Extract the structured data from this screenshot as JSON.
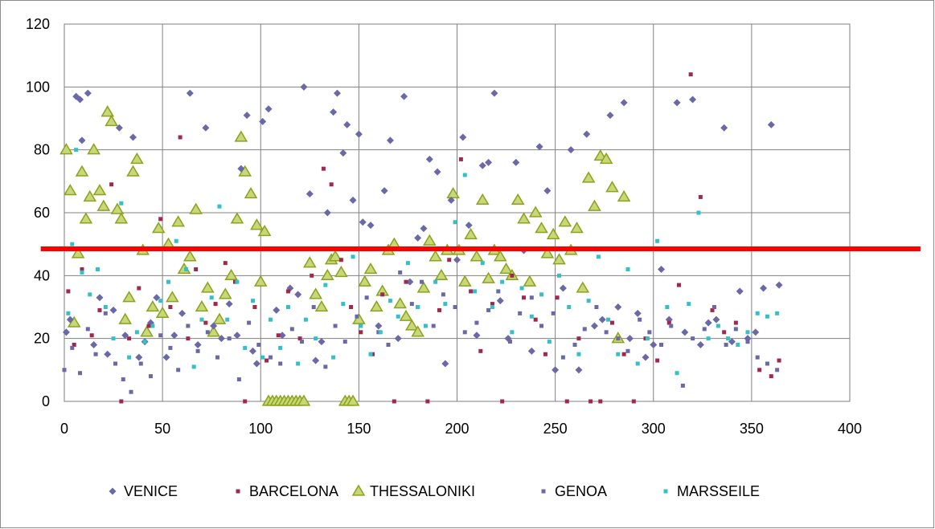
{
  "chart_data": {
    "type": "scatter",
    "title": "",
    "xlabel": "",
    "ylabel": "",
    "xlim": [
      0,
      400
    ],
    "ylim": [
      0,
      120
    ],
    "x_ticks": [
      0,
      50,
      100,
      150,
      200,
      250,
      300,
      350,
      400
    ],
    "y_ticks": [
      0,
      20,
      40,
      60,
      80,
      100,
      120
    ],
    "x_tick_labels": [
      "0",
      "50",
      "100",
      "150",
      "200",
      "250",
      "300",
      "350",
      "400"
    ],
    "y_tick_labels": [
      "0",
      "20",
      "40",
      "60",
      "80",
      "100",
      "120"
    ],
    "grid": true,
    "legend_position": "bottom",
    "threshold_line": {
      "y": 48.5,
      "x_range": [
        -12,
        436
      ],
      "color": "#ff0000"
    },
    "series": [
      {
        "name": "VENICE",
        "marker": "diamond",
        "color": "#6b68a8",
        "x": [
          1,
          3,
          6,
          8,
          9,
          12,
          15,
          18,
          22,
          25,
          28,
          31,
          35,
          38,
          41,
          44,
          47,
          52,
          56,
          60,
          64,
          68,
          72,
          76,
          80,
          84,
          88,
          90,
          93,
          96,
          98,
          101,
          104,
          108,
          111,
          115,
          119,
          122,
          125,
          128,
          131,
          134,
          137,
          139,
          142,
          144,
          147,
          150,
          152,
          156,
          160,
          163,
          166,
          170,
          173,
          176,
          180,
          183,
          186,
          190,
          194,
          197,
          200,
          203,
          206,
          210,
          213,
          216,
          219,
          222,
          226,
          230,
          234,
          238,
          242,
          246,
          250,
          254,
          258,
          262,
          266,
          270,
          274,
          278,
          282,
          285,
          288,
          292,
          296,
          300,
          304,
          308,
          312,
          316,
          320,
          324,
          328,
          332,
          336,
          340,
          344,
          348,
          352,
          356,
          360,
          364
        ],
        "y": [
          22,
          26,
          97,
          96,
          83,
          98,
          18,
          33,
          15,
          29,
          87,
          21,
          84,
          14,
          19,
          25,
          33,
          14,
          21,
          28,
          98,
          18,
          87,
          24,
          20,
          31,
          21,
          74,
          91,
          16,
          12,
          89,
          93,
          29,
          21,
          36,
          34,
          100,
          66,
          13,
          19,
          60,
          92,
          98,
          79,
          88,
          64,
          85,
          57,
          56,
          24,
          67,
          83,
          20,
          97,
          38,
          52,
          55,
          77,
          73,
          12,
          64,
          45,
          84,
          56,
          21,
          75,
          76,
          98,
          32,
          20,
          76,
          48,
          16,
          81,
          67,
          10,
          36,
          80,
          10,
          85,
          24,
          26,
          91,
          30,
          95,
          20,
          28,
          14,
          18,
          42,
          26,
          95,
          22,
          96,
          18,
          25,
          26,
          87,
          19,
          35,
          20,
          22,
          36,
          88,
          37
        ]
      },
      {
        "name": "BARCELONA",
        "marker": "square",
        "color": "#a0284a",
        "x": [
          2,
          5,
          9,
          14,
          18,
          24,
          29,
          33,
          38,
          43,
          49,
          54,
          59,
          63,
          67,
          72,
          77,
          82,
          87,
          92,
          97,
          103,
          109,
          114,
          120,
          126,
          132,
          136,
          141,
          146,
          151,
          157,
          162,
          168,
          174,
          180,
          185,
          191,
          196,
          202,
          207,
          212,
          218,
          223,
          228,
          234,
          240,
          245,
          251,
          256,
          262,
          268,
          273,
          279,
          285,
          290,
          296,
          302,
          308,
          313,
          319,
          324,
          330,
          336,
          342,
          348,
          354,
          360,
          364
        ],
        "y": [
          35,
          18,
          42,
          21,
          29,
          69,
          0,
          20,
          36,
          24,
          58,
          30,
          84,
          20,
          42,
          25,
          31,
          44,
          38,
          0,
          30,
          13,
          21,
          35,
          20,
          40,
          74,
          69,
          45,
          30,
          22,
          15,
          34,
          0,
          38,
          30,
          0,
          29,
          45,
          77,
          35,
          16,
          31,
          0,
          40,
          33,
          26,
          15,
          33,
          0,
          20,
          0,
          0,
          25,
          15,
          0,
          20,
          13,
          25,
          37,
          104,
          65,
          29,
          22,
          25,
          19,
          10,
          8,
          13
        ]
      },
      {
        "name": "THESSALONIKI",
        "marker": "triangle",
        "color": "#c8d878",
        "stroke": "#8aa21c",
        "x": [
          1,
          3,
          5,
          7,
          9,
          11,
          13,
          15,
          18,
          20,
          22,
          24,
          27,
          29,
          31,
          33,
          35,
          37,
          40,
          42,
          45,
          48,
          50,
          53,
          55,
          58,
          61,
          64,
          67,
          70,
          73,
          76,
          79,
          82,
          85,
          88,
          90,
          92,
          95,
          98,
          100,
          102,
          104,
          106,
          108,
          110,
          112,
          114,
          116,
          118,
          120,
          122,
          125,
          128,
          131,
          134,
          136,
          138,
          141,
          143,
          145,
          147,
          150,
          153,
          156,
          159,
          162,
          165,
          168,
          171,
          174,
          177,
          180,
          183,
          186,
          189,
          192,
          195,
          198,
          201,
          204,
          207,
          210,
          213,
          216,
          219,
          222,
          225,
          228,
          231,
          234,
          237,
          240,
          243,
          246,
          249,
          252,
          255,
          258,
          261,
          264,
          267,
          270,
          273,
          276,
          279,
          282,
          285
        ],
        "y": [
          80,
          67,
          25,
          47,
          73,
          58,
          65,
          80,
          67,
          62,
          92,
          89,
          61,
          58,
          26,
          33,
          73,
          77,
          48,
          22,
          30,
          55,
          28,
          50,
          33,
          57,
          42,
          46,
          61,
          30,
          36,
          22,
          26,
          34,
          40,
          58,
          84,
          73,
          66,
          56,
          38,
          54,
          0,
          0,
          0,
          0,
          0,
          0,
          0,
          0,
          0,
          0,
          44,
          34,
          30,
          40,
          45,
          46,
          41,
          0,
          0,
          0,
          26,
          38,
          42,
          30,
          35,
          48,
          50,
          31,
          27,
          24,
          22,
          36,
          51,
          46,
          40,
          48,
          66,
          48,
          38,
          53,
          46,
          64,
          39,
          48,
          46,
          42,
          40,
          64,
          58,
          38,
          60,
          55,
          47,
          53,
          45,
          57,
          48,
          55,
          36,
          71,
          62,
          78,
          77,
          68,
          20,
          65
        ]
      },
      {
        "name": "GENOA",
        "marker": "square",
        "color": "#6b68a8",
        "x": [
          0,
          4,
          8,
          12,
          16,
          21,
          26,
          30,
          34,
          39,
          44,
          49,
          54,
          58,
          63,
          68,
          73,
          78,
          84,
          89,
          94,
          99,
          105,
          110,
          116,
          121,
          127,
          133,
          138,
          143,
          149,
          154,
          160,
          165,
          171,
          177,
          182,
          188,
          193,
          199,
          204,
          210,
          216,
          221,
          227,
          232,
          238,
          243,
          249,
          254,
          260,
          265,
          271,
          276,
          282,
          287,
          293,
          298,
          304,
          309,
          315,
          320,
          326,
          331,
          337,
          342,
          348,
          353,
          358,
          363
        ],
        "y": [
          10,
          17,
          9,
          23,
          15,
          28,
          12,
          7,
          3,
          12,
          8,
          21,
          17,
          10,
          24,
          16,
          22,
          14,
          20,
          7,
          25,
          18,
          14,
          12,
          23,
          19,
          30,
          11,
          24,
          19,
          27,
          33,
          22,
          18,
          41,
          31,
          38,
          24,
          34,
          30,
          22,
          25,
          29,
          35,
          19,
          28,
          33,
          24,
          28,
          14,
          18,
          23,
          30,
          22,
          20,
          16,
          26,
          22,
          18,
          24,
          5,
          20,
          23,
          30,
          18,
          23,
          19,
          14,
          12,
          10
        ]
      },
      {
        "name": "MARSSEILE",
        "marker": "square",
        "color": "#33c0c8",
        "x": [
          2,
          4,
          6,
          9,
          13,
          17,
          21,
          25,
          29,
          33,
          37,
          41,
          45,
          49,
          53,
          57,
          62,
          66,
          70,
          75,
          79,
          83,
          88,
          92,
          96,
          101,
          105,
          110,
          114,
          119,
          123,
          128,
          133,
          137,
          142,
          147,
          151,
          156,
          161,
          166,
          170,
          175,
          180,
          184,
          189,
          194,
          199,
          204,
          209,
          213,
          218,
          223,
          228,
          233,
          238,
          243,
          247,
          252,
          257,
          262,
          267,
          272,
          277,
          282,
          287,
          292,
          297,
          302,
          307,
          312,
          318,
          323,
          328,
          333,
          338,
          343,
          348,
          353,
          358,
          363
        ],
        "y": [
          28,
          50,
          80,
          41,
          34,
          42,
          30,
          20,
          63,
          14,
          22,
          19,
          24,
          32,
          38,
          51,
          42,
          11,
          26,
          33,
          62,
          26,
          38,
          17,
          32,
          14,
          26,
          17,
          30,
          12,
          26,
          20,
          37,
          14,
          31,
          46,
          24,
          15,
          22,
          32,
          27,
          44,
          30,
          24,
          38,
          31,
          57,
          72,
          35,
          44,
          30,
          38,
          22,
          36,
          27,
          34,
          19,
          40,
          30,
          15,
          32,
          46,
          26,
          15,
          42,
          12,
          20,
          51,
          30,
          9,
          31,
          60,
          20,
          24,
          20,
          18,
          22,
          28,
          27,
          28
        ]
      }
    ]
  }
}
